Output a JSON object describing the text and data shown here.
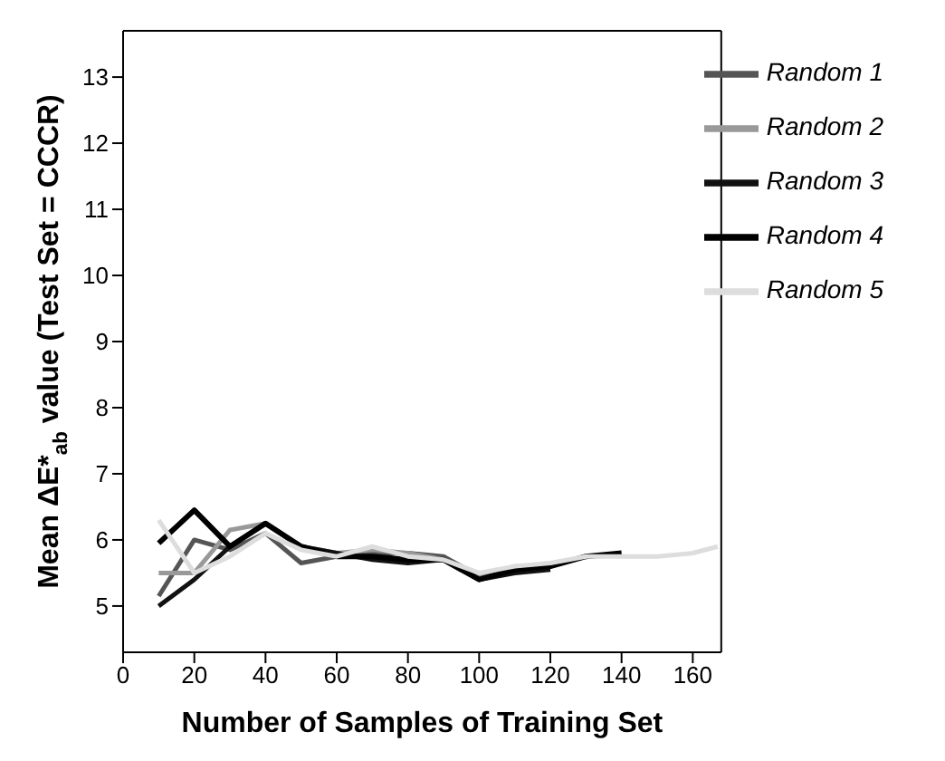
{
  "chart_data": {
    "type": "line",
    "xlabel": "Number of Samples of Training Set",
    "ylabel": "Mean ΔE*$_{ab}$ value (Test Set = CCCR)",
    "xlim": [
      0,
      168
    ],
    "xticks": [
      0,
      20,
      40,
      60,
      80,
      100,
      120,
      140,
      160
    ],
    "ylim": [
      4.3,
      13.7
    ],
    "yticks": [
      5,
      6,
      7,
      8,
      9,
      10,
      11,
      12,
      13
    ],
    "grid": false,
    "legend": "top right",
    "marker": "none",
    "line_style": "solid",
    "series": [
      {
        "name": "Random 1",
        "color": "#555555",
        "x": [
          10,
          20,
          30,
          40,
          50,
          60,
          70,
          80,
          90,
          100,
          110,
          120
        ],
        "values": [
          5.15,
          6.0,
          5.85,
          6.1,
          5.65,
          5.75,
          5.8,
          5.8,
          5.75,
          5.45,
          5.55,
          5.6
        ]
      },
      {
        "name": "Random 2",
        "color": "#999999",
        "x": [
          10,
          20,
          30,
          40,
          50,
          60,
          70,
          80,
          90,
          100,
          110,
          120,
          130
        ],
        "values": [
          5.5,
          5.5,
          6.15,
          6.25,
          5.9,
          5.8,
          5.85,
          5.8,
          5.7,
          5.45,
          5.6,
          5.6,
          5.75
        ]
      },
      {
        "name": "Random 3",
        "color": "#111111",
        "x": [
          10,
          20,
          30,
          40,
          50,
          60,
          70,
          80,
          90,
          100,
          110,
          120
        ],
        "values": [
          5.0,
          5.4,
          5.9,
          6.25,
          5.9,
          5.8,
          5.7,
          5.65,
          5.7,
          5.4,
          5.5,
          5.55
        ]
      },
      {
        "name": "Random 4",
        "color": "#000000",
        "x": [
          10,
          20,
          30,
          40,
          50,
          60,
          70,
          80,
          90,
          100,
          110,
          120,
          130,
          140
        ],
        "values": [
          5.95,
          6.45,
          5.9,
          6.25,
          5.9,
          5.75,
          5.75,
          5.7,
          5.7,
          5.4,
          5.55,
          5.6,
          5.75,
          5.8
        ]
      },
      {
        "name": "Random 5",
        "color": "#dddddd",
        "x": [
          10,
          20,
          30,
          40,
          50,
          60,
          70,
          80,
          90,
          100,
          110,
          120,
          130,
          140,
          150,
          160,
          167
        ],
        "values": [
          6.3,
          5.5,
          5.75,
          6.1,
          5.85,
          5.75,
          5.9,
          5.75,
          5.7,
          5.5,
          5.6,
          5.65,
          5.75,
          5.75,
          5.75,
          5.8,
          5.9
        ]
      }
    ]
  }
}
